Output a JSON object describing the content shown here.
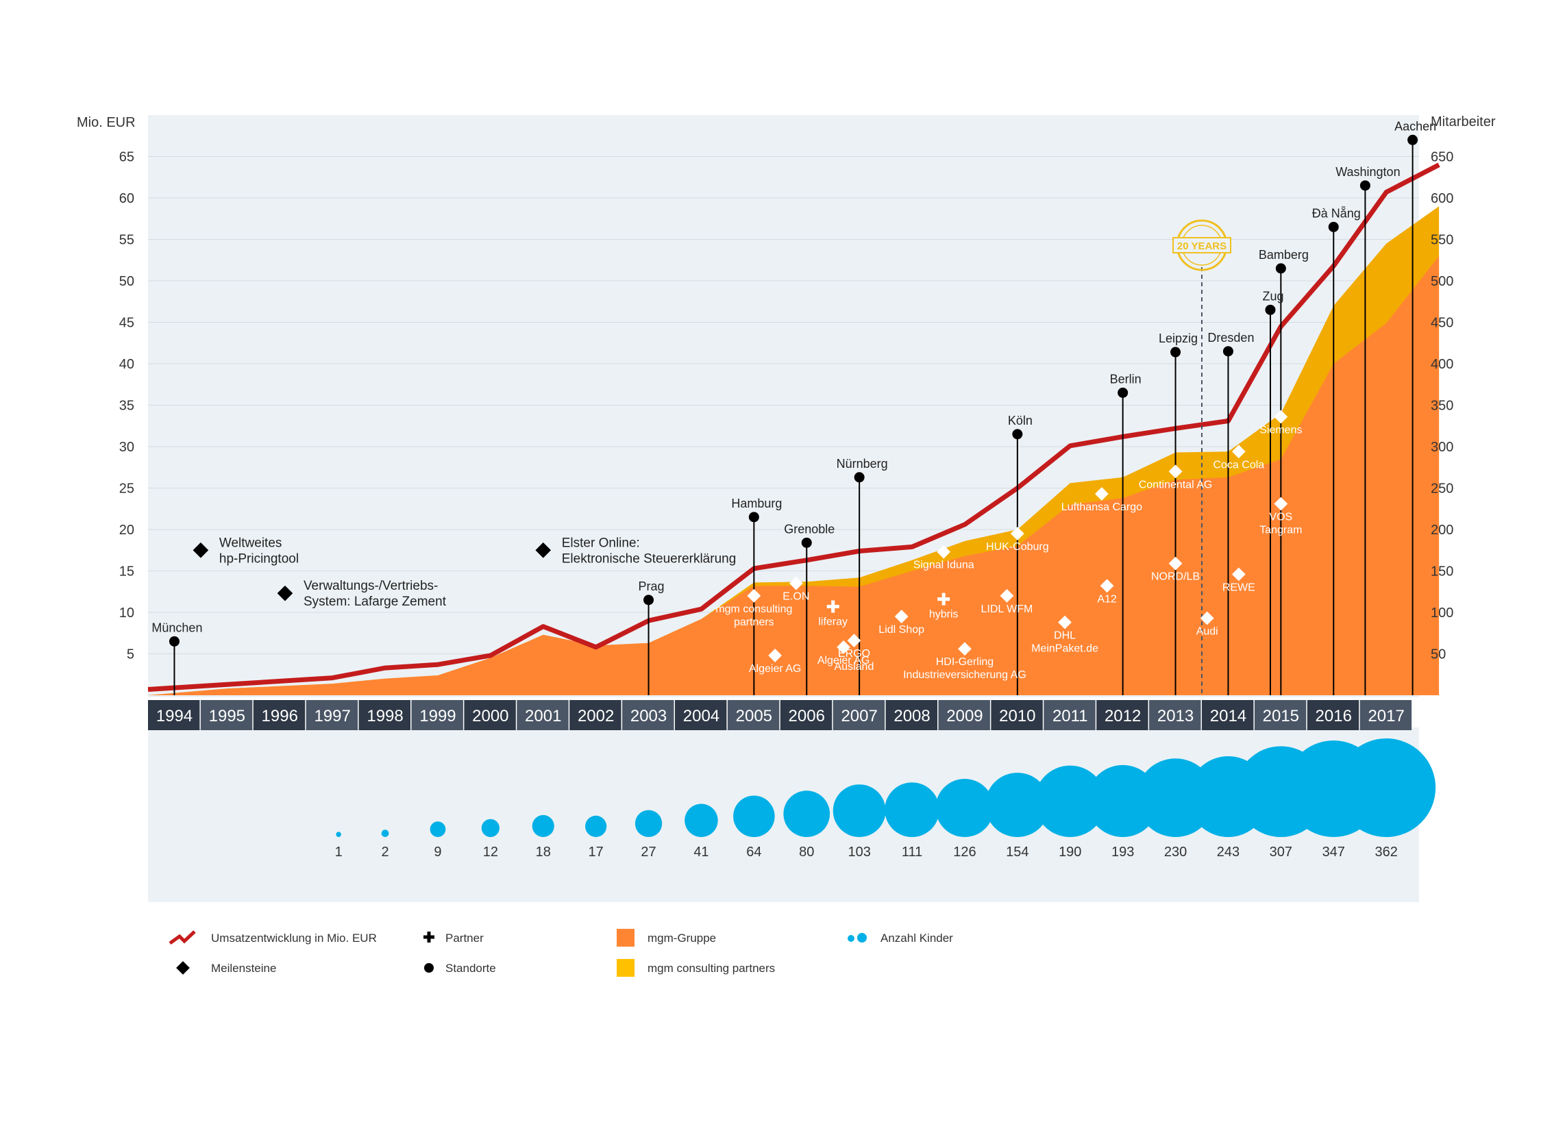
{
  "chart_data": {
    "type": "area",
    "y_left_label": "Mio. EUR",
    "y_right_label": "Mitarbeiter",
    "y_left_ticks": [
      "5",
      "10",
      "15",
      "20",
      "25",
      "30",
      "35",
      "40",
      "45",
      "50",
      "55",
      "60",
      "65"
    ],
    "y_right_ticks": [
      "50",
      "100",
      "150",
      "200",
      "250",
      "300",
      "350",
      "400",
      "450",
      "500",
      "550",
      "600",
      "650"
    ],
    "ylim_left": [
      0,
      70
    ],
    "ylim_right": [
      0,
      700
    ],
    "years": [
      "1994",
      "1995",
      "1996",
      "1997",
      "1998",
      "1999",
      "2000",
      "2001",
      "2002",
      "2003",
      "2004",
      "2005",
      "2006",
      "2007",
      "2008",
      "2009",
      "2010",
      "2011",
      "2012",
      "2013",
      "2014",
      "2015",
      "2016",
      "2017"
    ],
    "revenue": {
      "points": [
        [
          1993.5,
          0.7
        ],
        [
          1995,
          1.3
        ],
        [
          1997,
          2.1
        ],
        [
          1998,
          3.3
        ],
        [
          1999,
          3.7
        ],
        [
          2000,
          4.8
        ],
        [
          2001,
          8.3
        ],
        [
          2002,
          5.8
        ],
        [
          2003,
          9.0
        ],
        [
          2004,
          10.4
        ],
        [
          2005,
          15.3
        ],
        [
          2006,
          16.3
        ],
        [
          2007,
          17.4
        ],
        [
          2008,
          17.9
        ],
        [
          2009,
          20.6
        ],
        [
          2010,
          25.0
        ],
        [
          2011,
          30.1
        ],
        [
          2012,
          31.2
        ],
        [
          2013,
          32.2
        ],
        [
          2014,
          33.1
        ],
        [
          2015,
          44.5
        ],
        [
          2016,
          51.8
        ],
        [
          2017,
          60.7
        ],
        [
          2018,
          64.0
        ]
      ]
    },
    "mgm_gruppe": {
      "points": [
        [
          1993.5,
          0
        ],
        [
          1995,
          0.8
        ],
        [
          1997,
          1.4
        ],
        [
          1998,
          2.0
        ],
        [
          1999,
          2.4
        ],
        [
          2000,
          4.5
        ],
        [
          2001,
          7.3
        ],
        [
          2002,
          6.0
        ],
        [
          2003,
          6.3
        ],
        [
          2004,
          9.2
        ],
        [
          2005,
          13.2
        ],
        [
          2006,
          13.2
        ],
        [
          2007,
          13.1
        ],
        [
          2008,
          15.0
        ],
        [
          2009,
          16.8
        ],
        [
          2010,
          18.0
        ],
        [
          2011,
          23.0
        ],
        [
          2012,
          23.8
        ],
        [
          2013,
          26.0
        ],
        [
          2014,
          26.3
        ],
        [
          2015,
          28.5
        ],
        [
          2016,
          40.0
        ],
        [
          2017,
          44.9
        ],
        [
          2018,
          53.0
        ]
      ]
    },
    "mgm_consulting_partners": {
      "points": [
        [
          1993.5,
          0
        ],
        [
          1995,
          0.8
        ],
        [
          1997,
          1.4
        ],
        [
          1998,
          2.0
        ],
        [
          1999,
          2.4
        ],
        [
          2000,
          4.5
        ],
        [
          2001,
          7.3
        ],
        [
          2002,
          6.0
        ],
        [
          2003,
          6.3
        ],
        [
          2004,
          9.2
        ],
        [
          2005,
          13.6
        ],
        [
          2006,
          13.7
        ],
        [
          2007,
          14.2
        ],
        [
          2008,
          16.3
        ],
        [
          2009,
          18.6
        ],
        [
          2010,
          20.0
        ],
        [
          2011,
          25.6
        ],
        [
          2012,
          26.3
        ],
        [
          2013,
          29.3
        ],
        [
          2014,
          29.4
        ],
        [
          2015,
          34.0
        ],
        [
          2016,
          47.0
        ],
        [
          2017,
          54.5
        ],
        [
          2018,
          59.0
        ]
      ]
    },
    "locations": [
      {
        "name": "München",
        "year": 1994,
        "value": 6.5
      },
      {
        "name": "Prag",
        "year": 2003,
        "value": 11.5
      },
      {
        "name": "Hamburg",
        "year": 2005,
        "value": 21.5
      },
      {
        "name": "Grenoble",
        "year": 2006,
        "value": 18.4
      },
      {
        "name": "Nürnberg",
        "year": 2007,
        "value": 26.3
      },
      {
        "name": "Köln",
        "year": 2010,
        "value": 31.5
      },
      {
        "name": "Berlin",
        "year": 2012,
        "value": 36.5
      },
      {
        "name": "Leipzig",
        "year": 2013,
        "value": 41.4
      },
      {
        "name": "Dresden",
        "year": 2014,
        "value": 41.5
      },
      {
        "name": "Zug",
        "year": 2014.8,
        "value": 46.5
      },
      {
        "name": "Bamberg",
        "year": 2015,
        "value": 51.5
      },
      {
        "name": "Đà Nẵng",
        "year": 2016,
        "value": 56.5
      },
      {
        "name": "Washington",
        "year": 2016.6,
        "value": 61.5
      },
      {
        "name": "Aachen",
        "year": 2017.5,
        "value": 67.0
      }
    ],
    "milestones": [
      {
        "lines": [
          "Weltweites",
          "hp-Pricingtool"
        ],
        "year": 1994.5,
        "value": 17.5
      },
      {
        "lines": [
          "Verwaltungs-/Vertriebs-",
          "System: Lafarge Zement"
        ],
        "year": 1996.1,
        "value": 12.3
      },
      {
        "lines": [
          "Elster Online:",
          "Elektronische Steuererklärung"
        ],
        "year": 2001,
        "value": 17.5
      }
    ],
    "clients": [
      {
        "lines": [
          "mgm consulting",
          "partners"
        ],
        "year": 2005,
        "value": 12.0
      },
      {
        "lines": [
          "E.ON"
        ],
        "year": 2005.8,
        "value": 13.5
      },
      {
        "lines": [
          "Algeier AG"
        ],
        "year": 2005.4,
        "value": 4.8
      },
      {
        "lines": [
          "Algeier AG"
        ],
        "year": 2006.7,
        "value": 5.8
      },
      {
        "lines": [
          "ERGO",
          "Ausland"
        ],
        "year": 2006.9,
        "value": 6.6
      },
      {
        "lines": [
          "Lidl Shop"
        ],
        "year": 2007.8,
        "value": 9.5
      },
      {
        "lines": [
          "Signal Iduna"
        ],
        "year": 2008.6,
        "value": 17.3
      },
      {
        "lines": [
          "HDI-Gerling",
          "Industrieversicherung AG"
        ],
        "year": 2009,
        "value": 5.6
      },
      {
        "lines": [
          "HUK-Coburg"
        ],
        "year": 2010,
        "value": 19.5
      },
      {
        "lines": [
          "LIDL WFM"
        ],
        "year": 2009.8,
        "value": 12.0
      },
      {
        "lines": [
          "DHL",
          "MeinPaket.de"
        ],
        "year": 2010.9,
        "value": 8.8
      },
      {
        "lines": [
          "Lufthansa Cargo"
        ],
        "year": 2011.6,
        "value": 24.3
      },
      {
        "lines": [
          "A12"
        ],
        "year": 2011.7,
        "value": 13.2
      },
      {
        "lines": [
          "Continental AG"
        ],
        "year": 2013,
        "value": 27.0
      },
      {
        "lines": [
          "NORD/LB"
        ],
        "year": 2013,
        "value": 15.9
      },
      {
        "lines": [
          "Audi"
        ],
        "year": 2013.6,
        "value": 9.3
      },
      {
        "lines": [
          "Coca Cola"
        ],
        "year": 2014.2,
        "value": 29.4
      },
      {
        "lines": [
          "REWE"
        ],
        "year": 2014.2,
        "value": 14.6
      },
      {
        "lines": [
          "Siemens"
        ],
        "year": 2015,
        "value": 33.6
      },
      {
        "lines": [
          "VOS",
          "Tangram"
        ],
        "year": 2015,
        "value": 23.1
      }
    ],
    "partners": [
      {
        "name": "liferay",
        "year": 2006.5,
        "value": 10.7
      },
      {
        "name": "hybris",
        "year": 2008.6,
        "value": 11.6
      }
    ],
    "kids": {
      "labels": [
        "1",
        "2",
        "9",
        "12",
        "18",
        "17",
        "27",
        "41",
        "64",
        "80",
        "103",
        "111",
        "126",
        "154",
        "190",
        "193",
        "230",
        "243",
        "307",
        "347",
        "362"
      ],
      "values": [
        1,
        2,
        9,
        12,
        18,
        17,
        27,
        41,
        64,
        80,
        103,
        111,
        126,
        154,
        190,
        193,
        230,
        243,
        307,
        347,
        362
      ]
    },
    "milestone_20years": {
      "year": 2013.5,
      "line1": "20 YEARS"
    }
  },
  "legend": {
    "revenue": "Umsatzentwicklung  in  Mio. EUR",
    "milestones": "Meilensteine",
    "partner": "Partner",
    "locations": "Standorte",
    "mgm_gruppe": "mgm-Gruppe",
    "mgm_cp": "mgm consulting  partners",
    "kids": "Anzahl Kinder"
  },
  "colors": {
    "revenue": "#c41c1c",
    "mgm_gruppe": "#ff8533",
    "mgm_cp": "#f2ab00",
    "kids": "#00b0e6",
    "plot_bg": "#ecf1f5",
    "year_dark": "#2e3846",
    "year_light": "#4a5666"
  }
}
